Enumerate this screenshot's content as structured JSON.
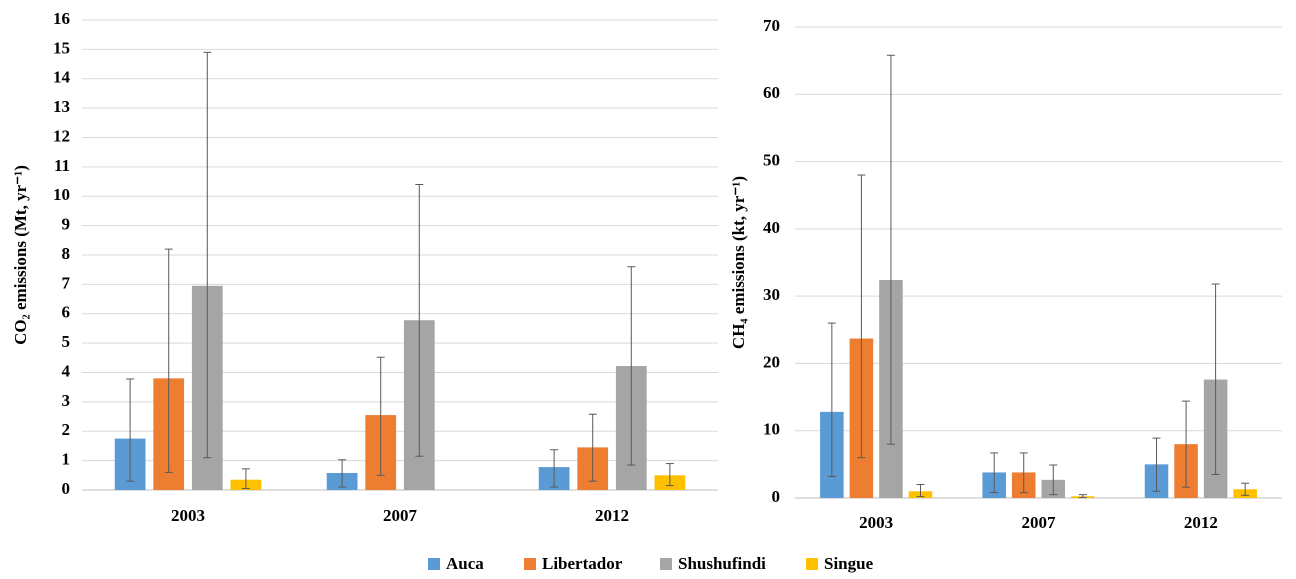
{
  "chart_data": [
    {
      "type": "bar",
      "ylabel": "CO₂ emissions (Mt, yr⁻¹)",
      "categories": [
        "2003",
        "2007",
        "2012"
      ],
      "ylim": [
        0,
        16
      ],
      "yticks": [
        0,
        1,
        2,
        3,
        4,
        5,
        6,
        7,
        8,
        9,
        10,
        11,
        12,
        13,
        14,
        15,
        16
      ],
      "grid": true,
      "series": [
        {
          "name": "Auca",
          "color": "#5b9bd5",
          "values": [
            1.75,
            0.58,
            0.78
          ],
          "error_plus": [
            2.03,
            0.45,
            0.59
          ],
          "error_minus": [
            1.45,
            0.48,
            0.68
          ]
        },
        {
          "name": "Libertador",
          "color": "#ed7d31",
          "values": [
            3.8,
            2.55,
            1.45
          ],
          "error_plus": [
            4.4,
            1.97,
            1.13
          ],
          "error_minus": [
            3.2,
            2.05,
            1.15
          ]
        },
        {
          "name": "Shushufindi",
          "color": "#a5a5a5",
          "values": [
            6.95,
            5.78,
            4.22
          ],
          "error_plus": [
            7.95,
            4.62,
            3.38
          ],
          "error_minus": [
            5.85,
            4.63,
            3.37
          ]
        },
        {
          "name": "Singue",
          "color": "#ffc000",
          "values": [
            0.35,
            null,
            0.5
          ],
          "error_plus": [
            0.37,
            null,
            0.4
          ],
          "error_minus": [
            0.3,
            null,
            0.35
          ]
        }
      ]
    },
    {
      "type": "bar",
      "ylabel": "CH₄ emissions (kt, yr⁻¹)",
      "categories": [
        "2003",
        "2007",
        "2012"
      ],
      "ylim": [
        0,
        70
      ],
      "yticks": [
        0,
        10,
        20,
        30,
        40,
        50,
        60,
        70
      ],
      "grid": true,
      "series": [
        {
          "color": "#5b9bd5",
          "values": [
            12.8,
            3.8,
            5.0
          ],
          "error_plus": [
            13.2,
            2.9,
            3.9
          ],
          "error_minus": [
            9.6,
            3.0,
            4.0
          ]
        },
        {
          "color": "#ed7d31",
          "values": [
            23.7,
            3.8,
            8.0
          ],
          "error_plus": [
            24.3,
            2.9,
            6.4
          ],
          "error_minus": [
            17.7,
            3.0,
            6.4
          ]
        },
        {
          "color": "#a5a5a5",
          "values": [
            32.4,
            2.7,
            17.6
          ],
          "error_plus": [
            33.4,
            2.2,
            14.2
          ],
          "error_minus": [
            24.4,
            2.2,
            14.1
          ]
        },
        {
          "color": "#ffc000",
          "values": [
            1.0,
            0.25,
            1.3
          ],
          "error_plus": [
            1.0,
            0.25,
            0.9
          ],
          "error_minus": [
            0.8,
            0.2,
            0.9
          ]
        }
      ]
    }
  ]
}
